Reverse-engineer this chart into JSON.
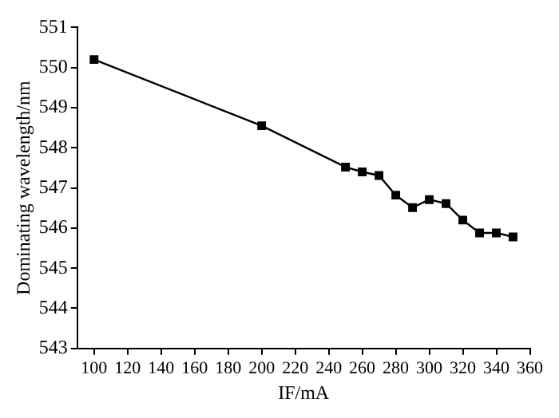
{
  "chart_data": {
    "type": "line",
    "xlabel": "IF/mA",
    "ylabel": "Dominating wavelength/nm",
    "x": [
      100,
      200,
      250,
      260,
      270,
      280,
      290,
      300,
      310,
      320,
      330,
      340,
      350
    ],
    "series": [
      {
        "color": "#000000",
        "values": [
          550.2,
          548.55,
          547.52,
          547.4,
          547.31,
          546.82,
          546.51,
          546.71,
          546.61,
          546.2,
          545.88,
          545.88,
          545.78
        ]
      }
    ],
    "xlim": [
      90,
      360
    ],
    "xticks": [
      100,
      120,
      140,
      160,
      180,
      200,
      220,
      240,
      260,
      280,
      300,
      320,
      340,
      360
    ],
    "ylim": [
      543,
      551
    ],
    "yticks": [
      543,
      544,
      545,
      546,
      547,
      548,
      549,
      550,
      551
    ],
    "grid": false,
    "legend": false,
    "marker": "square",
    "line_style": "solid"
  }
}
